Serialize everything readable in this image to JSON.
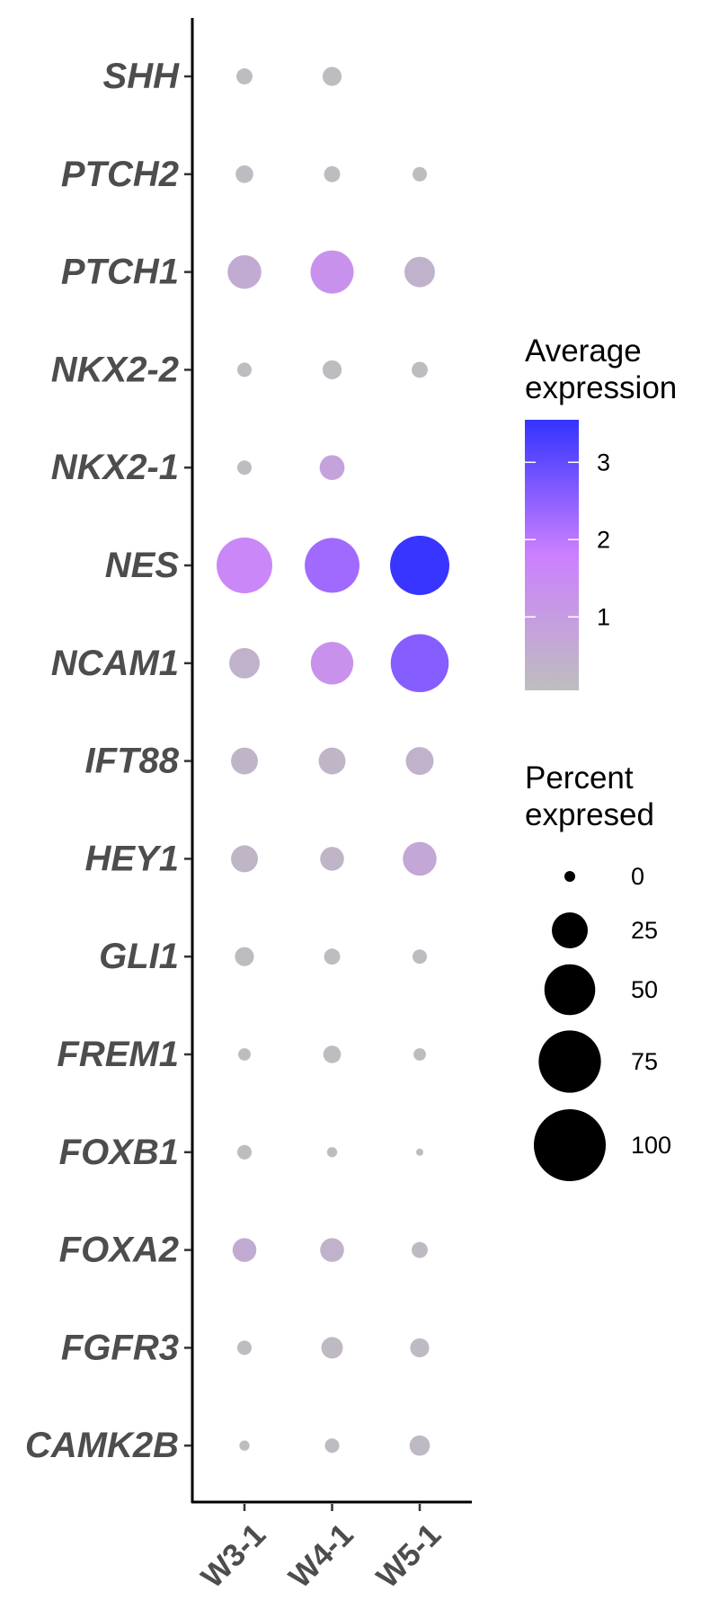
{
  "chart_data": {
    "type": "dot",
    "genes": [
      "SHH",
      "PTCH2",
      "PTCH1",
      "NKX2-2",
      "NKX2-1",
      "NES",
      "NCAM1",
      "IFT88",
      "HEY1",
      "GLI1",
      "FREM1",
      "FOXB1",
      "FOXA2",
      "FGFR3",
      "CAMK2B"
    ],
    "samples": [
      "W3-1",
      "W4-1",
      "W5-1"
    ],
    "points": [
      {
        "gene": "SHH",
        "sample": "W3-1",
        "avg": 0.1,
        "pct": 5
      },
      {
        "gene": "SHH",
        "sample": "W4-1",
        "avg": 0.1,
        "pct": 7
      },
      {
        "gene": "PTCH2",
        "sample": "W3-1",
        "avg": 0.1,
        "pct": 6
      },
      {
        "gene": "PTCH2",
        "sample": "W4-1",
        "avg": 0.1,
        "pct": 5
      },
      {
        "gene": "PTCH2",
        "sample": "W5-1",
        "avg": 0.1,
        "pct": 4
      },
      {
        "gene": "PTCH1",
        "sample": "W3-1",
        "avg": 0.6,
        "pct": 22
      },
      {
        "gene": "PTCH1",
        "sample": "W4-1",
        "avg": 1.3,
        "pct": 36
      },
      {
        "gene": "PTCH1",
        "sample": "W5-1",
        "avg": 0.4,
        "pct": 18
      },
      {
        "gene": "NKX2-2",
        "sample": "W3-1",
        "avg": 0.1,
        "pct": 4
      },
      {
        "gene": "NKX2-2",
        "sample": "W4-1",
        "avg": 0.1,
        "pct": 7
      },
      {
        "gene": "NKX2-2",
        "sample": "W5-1",
        "avg": 0.1,
        "pct": 5
      },
      {
        "gene": "NKX2-1",
        "sample": "W3-1",
        "avg": 0.1,
        "pct": 4
      },
      {
        "gene": "NKX2-1",
        "sample": "W4-1",
        "avg": 0.8,
        "pct": 12
      },
      {
        "gene": "NES",
        "sample": "W3-1",
        "avg": 1.6,
        "pct": 60
      },
      {
        "gene": "NES",
        "sample": "W4-1",
        "avg": 2.3,
        "pct": 58
      },
      {
        "gene": "NES",
        "sample": "W5-1",
        "avg": 3.5,
        "pct": 68
      },
      {
        "gene": "NCAM1",
        "sample": "W3-1",
        "avg": 0.4,
        "pct": 18
      },
      {
        "gene": "NCAM1",
        "sample": "W4-1",
        "avg": 1.3,
        "pct": 35
      },
      {
        "gene": "NCAM1",
        "sample": "W5-1",
        "avg": 2.6,
        "pct": 65
      },
      {
        "gene": "IFT88",
        "sample": "W3-1",
        "avg": 0.3,
        "pct": 14
      },
      {
        "gene": "IFT88",
        "sample": "W4-1",
        "avg": 0.3,
        "pct": 14
      },
      {
        "gene": "IFT88",
        "sample": "W5-1",
        "avg": 0.4,
        "pct": 15
      },
      {
        "gene": "HEY1",
        "sample": "W3-1",
        "avg": 0.3,
        "pct": 14
      },
      {
        "gene": "HEY1",
        "sample": "W4-1",
        "avg": 0.3,
        "pct": 11
      },
      {
        "gene": "HEY1",
        "sample": "W5-1",
        "avg": 0.7,
        "pct": 22
      },
      {
        "gene": "GLI1",
        "sample": "W3-1",
        "avg": 0.1,
        "pct": 7
      },
      {
        "gene": "GLI1",
        "sample": "W4-1",
        "avg": 0.1,
        "pct": 5
      },
      {
        "gene": "GLI1",
        "sample": "W5-1",
        "avg": 0.1,
        "pct": 4
      },
      {
        "gene": "FREM1",
        "sample": "W3-1",
        "avg": 0.1,
        "pct": 3
      },
      {
        "gene": "FREM1",
        "sample": "W4-1",
        "avg": 0.1,
        "pct": 6
      },
      {
        "gene": "FREM1",
        "sample": "W5-1",
        "avg": 0.1,
        "pct": 3
      },
      {
        "gene": "FOXB1",
        "sample": "W3-1",
        "avg": 0.1,
        "pct": 4
      },
      {
        "gene": "FOXB1",
        "sample": "W4-1",
        "avg": 0.1,
        "pct": 2
      },
      {
        "gene": "FOXB1",
        "sample": "W5-1",
        "avg": 0.1,
        "pct": 1
      },
      {
        "gene": "FOXA2",
        "sample": "W3-1",
        "avg": 0.6,
        "pct": 11
      },
      {
        "gene": "FOXA2",
        "sample": "W4-1",
        "avg": 0.4,
        "pct": 11
      },
      {
        "gene": "FOXA2",
        "sample": "W5-1",
        "avg": 0.2,
        "pct": 5
      },
      {
        "gene": "FGFR3",
        "sample": "W3-1",
        "avg": 0.1,
        "pct": 4
      },
      {
        "gene": "FGFR3",
        "sample": "W4-1",
        "avg": 0.2,
        "pct": 9
      },
      {
        "gene": "FGFR3",
        "sample": "W5-1",
        "avg": 0.2,
        "pct": 7
      },
      {
        "gene": "CAMK2B",
        "sample": "W3-1",
        "avg": 0.1,
        "pct": 2
      },
      {
        "gene": "CAMK2B",
        "sample": "W4-1",
        "avg": 0.1,
        "pct": 4
      },
      {
        "gene": "CAMK2B",
        "sample": "W5-1",
        "avg": 0.2,
        "pct": 8
      }
    ],
    "color_legend": {
      "title_lines": [
        "Average",
        "expression"
      ],
      "ticks": [
        1,
        2,
        3
      ],
      "range": [
        0.05,
        3.55
      ],
      "colors": [
        "#bebebe",
        "#cc80ff",
        "#3333ff"
      ]
    },
    "size_legend": {
      "title_lines": [
        "Percent",
        "expresed"
      ],
      "ticks": [
        0,
        25,
        50,
        75,
        100
      ]
    },
    "legend_position": "right",
    "grid": false
  }
}
